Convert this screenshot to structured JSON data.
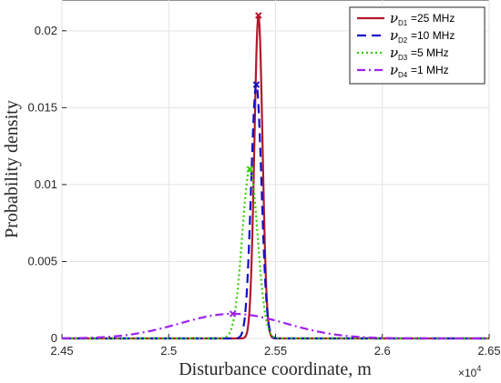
{
  "chart_data": {
    "type": "line",
    "xlabel": "Disturbance coordinate, m",
    "ylabel": "Probability density",
    "x_exponent_label": "×10",
    "x_exponent_power": "4",
    "xlim": [
      2.45,
      2.65
    ],
    "ylim": [
      0,
      0.022
    ],
    "xticks": [
      "2.45",
      "2.5",
      "2.55",
      "2.6",
      "2.65"
    ],
    "yticks": [
      "0",
      "0.005",
      "0.01",
      "0.015",
      "0.02"
    ],
    "xtick_values": [
      2.45,
      2.5,
      2.55,
      2.6,
      2.65
    ],
    "ytick_values": [
      0,
      0.005,
      0.01,
      0.015,
      0.02
    ],
    "grid": true,
    "legend_position": "top-right",
    "series": [
      {
        "symbol": "ν",
        "sub": "D1",
        "value_label": "=25 MHz",
        "color": "#b2182b",
        "dash": "",
        "mean": 2.542,
        "peak": 0.021
      },
      {
        "symbol": "ν",
        "sub": "D2",
        "value_label": "=10 MHz",
        "color": "#1010c8",
        "dash": "10,6",
        "mean": 2.541,
        "peak": 0.0165
      },
      {
        "symbol": "ν",
        "sub": "D3",
        "value_label": "=5 MHz",
        "color": "#33cc00",
        "dash": "2,3",
        "mean": 2.538,
        "peak": 0.011
      },
      {
        "symbol": "ν",
        "sub": "D4",
        "value_label": "=1 MHz",
        "color": "#a020f0",
        "dash": "9,4,2,4",
        "mean": 2.53,
        "peak": 0.0016
      }
    ]
  }
}
